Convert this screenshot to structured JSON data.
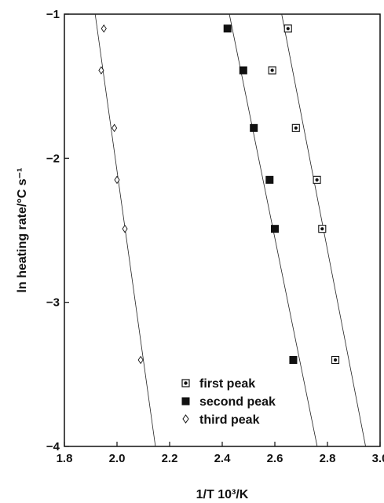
{
  "chart_data": {
    "type": "scatter",
    "title": "",
    "xlabel": "1/T 10³/K",
    "ylabel": "ln heating rate/°C s⁻¹",
    "xlim": [
      1.8,
      3.0
    ],
    "ylim": [
      -4,
      -1
    ],
    "x_ticks": [
      "1.8",
      "2.0",
      "2.2",
      "2.4",
      "2.6",
      "2.8",
      "3.0"
    ],
    "y_ticks": [
      "−1",
      "−2",
      "−3",
      "−4"
    ],
    "x_tick_values": [
      1.8,
      2.0,
      2.2,
      2.4,
      2.6,
      2.8,
      3.0
    ],
    "y_tick_values": [
      -1,
      -2,
      -3,
      -4
    ],
    "grid": false,
    "legend_position": "bottom-center",
    "series": [
      {
        "name": "first peak",
        "marker": "dotted-square",
        "points": [
          {
            "x": 2.65,
            "y": -1.1
          },
          {
            "x": 2.59,
            "y": -1.39
          },
          {
            "x": 2.68,
            "y": -1.79
          },
          {
            "x": 2.76,
            "y": -2.15
          },
          {
            "x": 2.78,
            "y": -2.49
          },
          {
            "x": 2.83,
            "y": -3.4
          }
        ],
        "fit_line": {
          "x1": 2.626,
          "y1": -1.0,
          "x2": 2.945,
          "y2": -4.0
        }
      },
      {
        "name": "second peak",
        "marker": "filled-square",
        "points": [
          {
            "x": 2.42,
            "y": -1.1
          },
          {
            "x": 2.48,
            "y": -1.39
          },
          {
            "x": 2.52,
            "y": -1.79
          },
          {
            "x": 2.58,
            "y": -2.15
          },
          {
            "x": 2.6,
            "y": -2.49
          },
          {
            "x": 2.67,
            "y": -3.4
          }
        ],
        "fit_line": {
          "x1": 2.427,
          "y1": -1.0,
          "x2": 2.761,
          "y2": -4.0
        }
      },
      {
        "name": "third peak",
        "marker": "open-diamond",
        "points": [
          {
            "x": 1.95,
            "y": -1.1
          },
          {
            "x": 1.94,
            "y": -1.39
          },
          {
            "x": 1.99,
            "y": -1.79
          },
          {
            "x": 2.0,
            "y": -2.15
          },
          {
            "x": 2.03,
            "y": -2.49
          },
          {
            "x": 2.09,
            "y": -3.4
          }
        ],
        "fit_line": {
          "x1": 1.917,
          "y1": -1.0,
          "x2": 2.146,
          "y2": -4.0
        }
      }
    ]
  }
}
